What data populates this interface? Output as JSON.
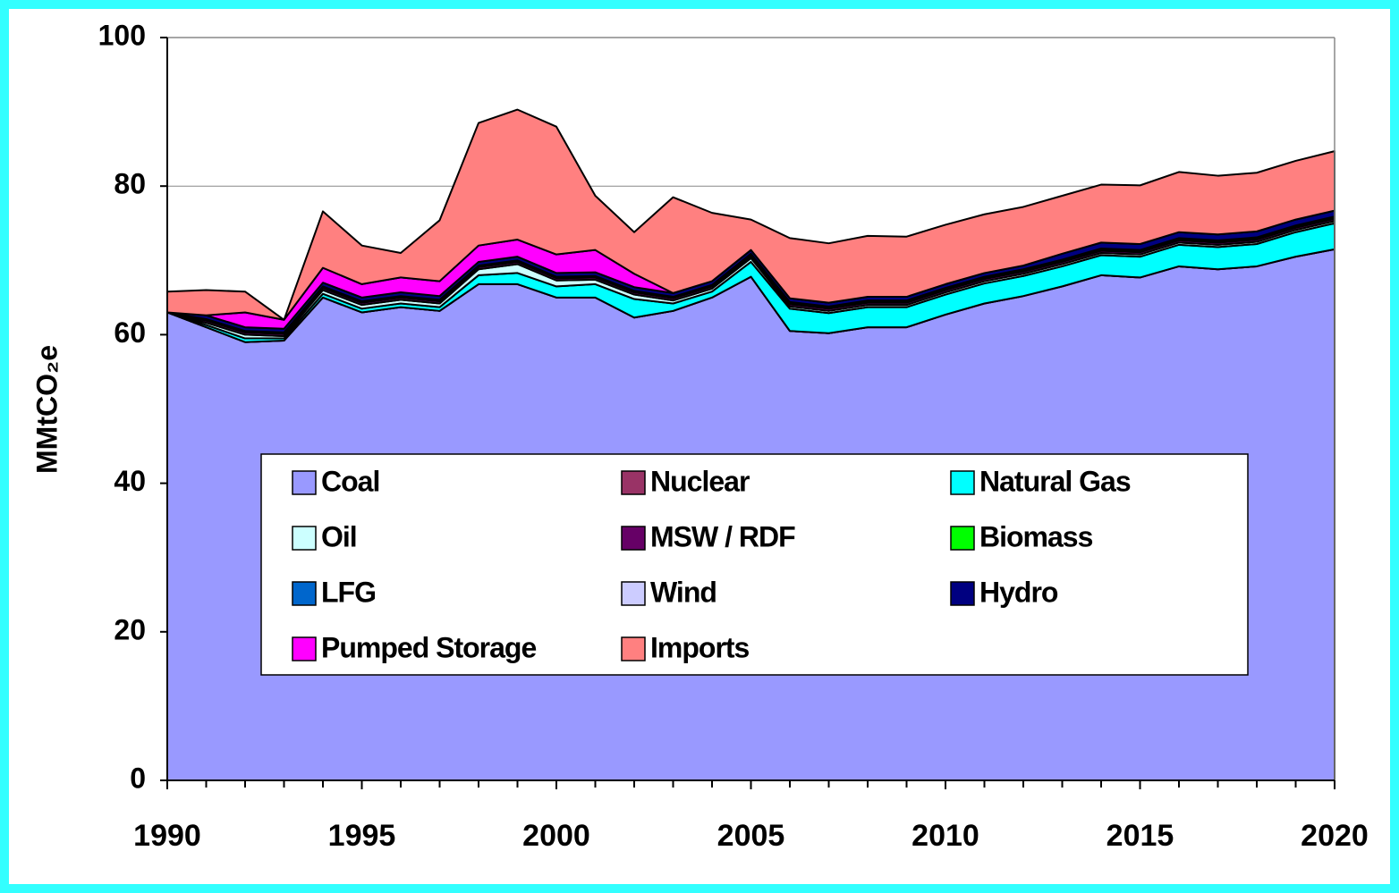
{
  "chart_data": {
    "type": "stacked_area",
    "y_label": "MMtCO₂e",
    "x": [
      1990,
      1991,
      1992,
      1993,
      1994,
      1995,
      1996,
      1997,
      1998,
      1999,
      2000,
      2001,
      2002,
      2003,
      2004,
      2005,
      2006,
      2007,
      2008,
      2009,
      2010,
      2011,
      2012,
      2013,
      2014,
      2015,
      2016,
      2017,
      2018,
      2019,
      2020
    ],
    "xlim": [
      1990,
      2020
    ],
    "xticks": [
      1990,
      1995,
      2000,
      2005,
      2010,
      2015,
      2020
    ],
    "ylim": [
      0,
      100
    ],
    "yticks": [
      0,
      20,
      40,
      60,
      80,
      100
    ],
    "grid": true,
    "series": [
      {
        "name": "Coal",
        "color": "#9999ff",
        "values": [
          63,
          61,
          59,
          59.2,
          65,
          63,
          63.7,
          63.2,
          66.8,
          66.8,
          65,
          65,
          62.3,
          63.2,
          65,
          67.8,
          60.5,
          60.2,
          61,
          61,
          62.7,
          64.2,
          65.2,
          66.5,
          68,
          67.7,
          69.2,
          68.8,
          69.2,
          70.5,
          71.5
        ]
      },
      {
        "name": "Nuclear",
        "color": "#993366",
        "values": [
          0,
          0,
          0,
          0,
          0,
          0,
          0,
          0,
          0,
          0,
          0,
          0,
          0,
          0,
          0,
          0,
          0,
          0,
          0,
          0,
          0,
          0,
          0,
          0,
          0,
          0,
          0,
          0,
          0,
          0,
          0
        ]
      },
      {
        "name": "Natural Gas",
        "color": "#00ffff",
        "values": [
          0,
          0.3,
          0.5,
          0.3,
          0.5,
          0.5,
          0.5,
          0.5,
          1.2,
          1.5,
          1.5,
          1.8,
          2.5,
          1,
          0.8,
          2,
          3,
          2.7,
          2.7,
          2.7,
          2.7,
          2.7,
          2.7,
          2.7,
          2.7,
          2.8,
          2.9,
          3,
          3,
          3.3,
          3.5
        ]
      },
      {
        "name": "Oil",
        "color": "#ccffff",
        "values": [
          0,
          0.3,
          0.5,
          0.3,
          0.5,
          0.5,
          0.5,
          0.5,
          0.8,
          1.2,
          0.8,
          0.6,
          0.6,
          0.4,
          0.4,
          0.5,
          0.3,
          0.3,
          0.3,
          0.3,
          0.3,
          0.3,
          0.3,
          0.3,
          0.3,
          0.3,
          0.3,
          0.3,
          0.3,
          0.3,
          0.3
        ]
      },
      {
        "name": "MSW / RDF",
        "color": "#660066",
        "values": [
          0,
          0.3,
          0.3,
          0.3,
          0.3,
          0.3,
          0.3,
          0.3,
          0.3,
          0.3,
          0.3,
          0.3,
          0.3,
          0.3,
          0.3,
          0.3,
          0.3,
          0.3,
          0.3,
          0.3,
          0.3,
          0.3,
          0.3,
          0.3,
          0.3,
          0.3,
          0.3,
          0.3,
          0.3,
          0.3,
          0.3
        ]
      },
      {
        "name": "Biomass",
        "color": "#00ff00",
        "values": [
          0,
          0.1,
          0.1,
          0.1,
          0.1,
          0.1,
          0.1,
          0.1,
          0.1,
          0.1,
          0.1,
          0.1,
          0.1,
          0.1,
          0.1,
          0.1,
          0.1,
          0.1,
          0.1,
          0.1,
          0.1,
          0.1,
          0.1,
          0.1,
          0.1,
          0.1,
          0.1,
          0.1,
          0.1,
          0.1,
          0.1
        ]
      },
      {
        "name": "LFG",
        "color": "#0066cc",
        "values": [
          0,
          0.1,
          0.1,
          0.1,
          0.1,
          0.1,
          0.1,
          0.1,
          0.1,
          0.1,
          0.1,
          0.1,
          0.1,
          0.1,
          0.1,
          0.1,
          0.1,
          0.1,
          0.1,
          0.1,
          0.1,
          0.1,
          0.1,
          0.1,
          0.1,
          0.1,
          0.1,
          0.1,
          0.1,
          0.1,
          0.1
        ]
      },
      {
        "name": "Wind",
        "color": "#ccccff",
        "values": [
          0,
          0,
          0,
          0,
          0,
          0,
          0,
          0,
          0,
          0,
          0,
          0,
          0,
          0,
          0,
          0.1,
          0.1,
          0.1,
          0.1,
          0.1,
          0.1,
          0.1,
          0.1,
          0.1,
          0.1,
          0.1,
          0.1,
          0.1,
          0.1,
          0.1,
          0.1
        ]
      },
      {
        "name": "Hydro",
        "color": "#000080",
        "values": [
          0,
          0.5,
          0.5,
          0.5,
          0.5,
          0.5,
          0.5,
          0.5,
          0.5,
          0.5,
          0.5,
          0.5,
          0.5,
          0.5,
          0.5,
          0.5,
          0.5,
          0.5,
          0.5,
          0.5,
          0.5,
          0.5,
          0.5,
          0.8,
          0.8,
          0.8,
          0.8,
          0.8,
          0.8,
          0.8,
          0.8
        ]
      },
      {
        "name": "Pumped Storage",
        "color": "#ff00ff",
        "values": [
          0,
          0,
          2,
          1.2,
          2,
          1.8,
          2,
          2,
          2.2,
          2.3,
          2.5,
          3,
          1.8,
          0,
          0,
          0,
          0,
          0,
          0,
          0,
          0,
          0,
          0,
          0,
          0,
          0,
          0,
          0,
          0,
          0,
          0
        ]
      },
      {
        "name": "Imports",
        "color": "#ff8080",
        "values": [
          2.8,
          3.4,
          2.8,
          0,
          7.6,
          5.2,
          3.3,
          8.2,
          16.5,
          17.5,
          17.2,
          7.3,
          5.6,
          12.9,
          9.2,
          4.1,
          8.1,
          8,
          8.2,
          8.1,
          8,
          7.9,
          7.9,
          7.8,
          7.8,
          7.9,
          8.1,
          7.9,
          7.9,
          7.9,
          8
        ]
      }
    ]
  }
}
